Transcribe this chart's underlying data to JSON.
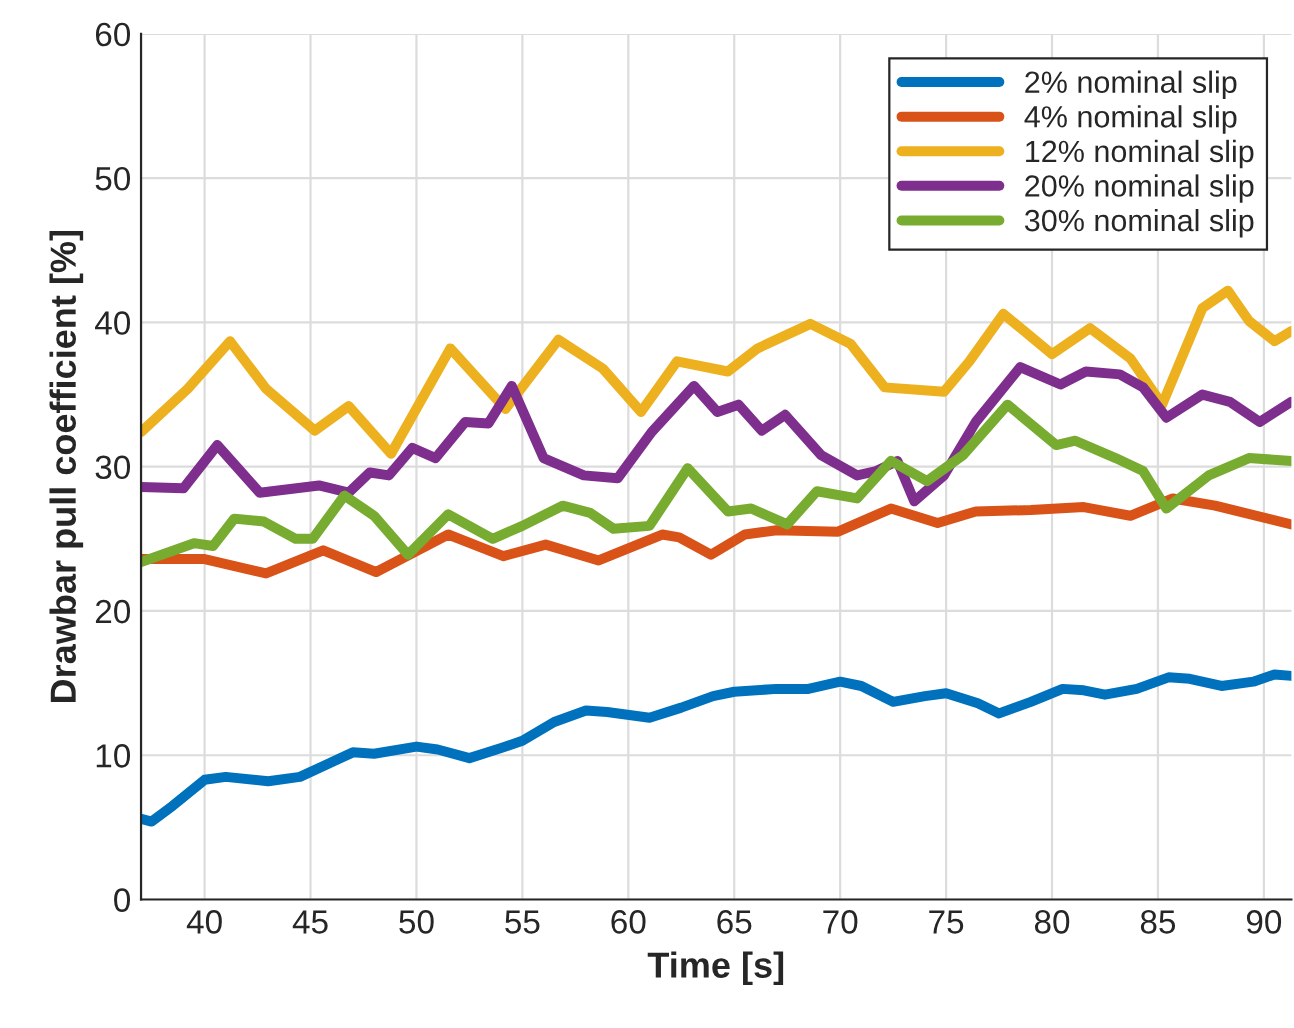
{
  "chart_data": {
    "type": "line",
    "xlabel": "Time [s]",
    "ylabel": "Drawbar pull coefficient [%]",
    "xlim": [
      37,
      91.3
    ],
    "xticks": [
      40,
      45,
      50,
      55,
      60,
      65,
      70,
      75,
      80,
      85,
      90
    ],
    "ylim": [
      0,
      60
    ],
    "yticks": [
      0,
      10,
      20,
      30,
      40,
      50,
      60
    ],
    "grid": true,
    "legend": "top right",
    "line_style": "solid",
    "marker": "none",
    "series": [
      {
        "name": "2% nominal slip",
        "color": "#0072bd",
        "x": [
          37,
          37.5,
          38.5,
          40,
          41,
          43,
          44.5,
          47,
          48,
          50,
          51,
          52.5,
          54,
          55,
          56.5,
          58,
          59,
          61,
          62.5,
          64,
          65,
          67,
          68.5,
          70,
          71,
          72.5,
          74,
          75,
          76.5,
          77.5,
          79,
          80.5,
          81.5,
          82.5,
          84,
          85.5,
          86.5,
          88,
          89.5,
          90.5,
          91.3
        ],
        "values": [
          5.6,
          5.4,
          6.5,
          8.3,
          8.5,
          8.2,
          8.5,
          10.2,
          10.1,
          10.6,
          10.4,
          9.8,
          10.5,
          11,
          12.3,
          13.1,
          13,
          12.6,
          13.3,
          14.1,
          14.4,
          14.6,
          14.6,
          15.1,
          14.8,
          13.7,
          14.1,
          14.3,
          13.6,
          12.9,
          13.7,
          14.6,
          14.5,
          14.2,
          14.6,
          15.4,
          15.3,
          14.8,
          15.1,
          15.6,
          15.5
        ]
      },
      {
        "name": "4% nominal slip",
        "color": "#d95319",
        "x": [
          37,
          40,
          42.9,
          45.6,
          48.1,
          51.5,
          54.1,
          56.1,
          58.6,
          61.6,
          62.4,
          63.9,
          65.5,
          67,
          69.9,
          72.4,
          74.6,
          76.4,
          79,
          81.5,
          83.7,
          85.7,
          87.7,
          91.3
        ],
        "values": [
          23.6,
          23.6,
          22.6,
          24.2,
          22.7,
          25.3,
          23.8,
          24.6,
          23.5,
          25.3,
          25.1,
          23.9,
          25.3,
          25.6,
          25.5,
          27.1,
          26.1,
          26.9,
          27,
          27.2,
          26.6,
          27.8,
          27.3,
          26
        ]
      },
      {
        "name": "12% nominal slip",
        "color": "#edb120",
        "x": [
          37,
          39.2,
          41.2,
          42.9,
          45.2,
          46.8,
          48.8,
          51.6,
          54.2,
          56.7,
          58.8,
          60.6,
          62.3,
          64.7,
          66.1,
          68.6,
          70.5,
          72.1,
          74.9,
          76.1,
          77.7,
          80,
          81.8,
          83.7,
          85.2,
          87.1,
          88.3,
          89.3,
          90.5,
          91.3
        ],
        "values": [
          32.4,
          35.4,
          38.7,
          35.4,
          32.5,
          34.2,
          30.9,
          38.2,
          34,
          38.8,
          36.8,
          33.8,
          37.3,
          36.6,
          38.2,
          39.9,
          38.5,
          35.5,
          35.2,
          37.3,
          40.6,
          37.8,
          39.6,
          37.5,
          34.3,
          41,
          42.2,
          40.1,
          38.7,
          39.4
        ]
      },
      {
        "name": "20% nominal slip",
        "color": "#7e2f8e",
        "x": [
          37,
          39,
          40.6,
          42.6,
          45.4,
          46.8,
          47.8,
          48.7,
          49.8,
          50.9,
          52.3,
          53.4,
          54.5,
          56,
          57.9,
          59.5,
          61.1,
          63.1,
          64.2,
          65.2,
          66.3,
          67.4,
          69.1,
          70.8,
          71.7,
          72.7,
          73.5,
          74.9,
          76.4,
          78.5,
          80.4,
          81.6,
          83.2,
          84.3,
          85.4,
          87.1,
          88.4,
          89.8,
          91.3
        ],
        "values": [
          28.6,
          28.5,
          31.5,
          28.2,
          28.7,
          28.2,
          29.6,
          29.4,
          31.3,
          30.6,
          33.1,
          33,
          35.6,
          30.6,
          29.4,
          29.2,
          32.4,
          35.6,
          33.8,
          34.3,
          32.5,
          33.6,
          30.8,
          29.4,
          29.7,
          30.4,
          27.6,
          29.4,
          33.1,
          36.9,
          35.7,
          36.6,
          36.4,
          35.5,
          33.4,
          35,
          34.5,
          33.1,
          34.5
        ]
      },
      {
        "name": "30% nominal slip",
        "color": "#77ac30",
        "x": [
          37,
          39.5,
          40.4,
          41.4,
          42.8,
          44.3,
          45.1,
          46.6,
          48,
          49.6,
          51.5,
          53.6,
          55,
          56.9,
          58.2,
          59.3,
          61,
          62.8,
          64.7,
          65.8,
          67.5,
          68.9,
          70.8,
          72.4,
          74.1,
          75.8,
          77.9,
          80.2,
          81.1,
          83,
          84.3,
          85.4,
          87.4,
          89.3,
          91.3
        ],
        "values": [
          23.4,
          24.7,
          24.5,
          26.4,
          26.2,
          25,
          25,
          28,
          26.6,
          23.9,
          26.7,
          25,
          25.9,
          27.3,
          26.8,
          25.7,
          25.9,
          29.9,
          26.9,
          27.1,
          26,
          28.3,
          27.8,
          30.4,
          29,
          30.8,
          34.3,
          31.5,
          31.8,
          30.6,
          29.7,
          27.1,
          29.4,
          30.6,
          30.4
        ]
      }
    ]
  }
}
